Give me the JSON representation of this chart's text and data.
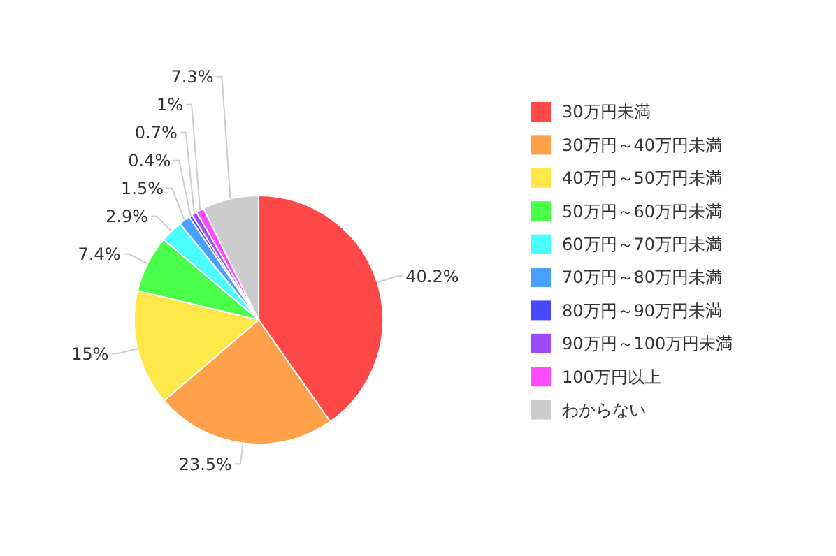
{
  "chart_data": {
    "type": "pie",
    "categories": [
      "30万円未満",
      "30万円～40万円未満",
      "40万円～50万円未満",
      "50万円～60万円未満",
      "60万円～70万円未満",
      "70万円～80万円未満",
      "80万円～90万円未満",
      "90万円～100万円未満",
      "100万円以上",
      "わからない"
    ],
    "values": [
      40.2,
      23.5,
      15,
      7.4,
      2.9,
      1.5,
      0.4,
      0.7,
      1,
      7.3
    ],
    "value_labels": [
      "40.2%",
      "23.5%",
      "15%",
      "7.4%",
      "2.9%",
      "1.5%",
      "0.4%",
      "0.7%",
      "1%",
      "7.3%"
    ],
    "colors": [
      "#ff4848",
      "#ffa04a",
      "#ffe74a",
      "#4aff4a",
      "#4affff",
      "#4aa0ff",
      "#4848ff",
      "#a04aff",
      "#ff4aff",
      "#cccccc"
    ],
    "legend": "right"
  }
}
